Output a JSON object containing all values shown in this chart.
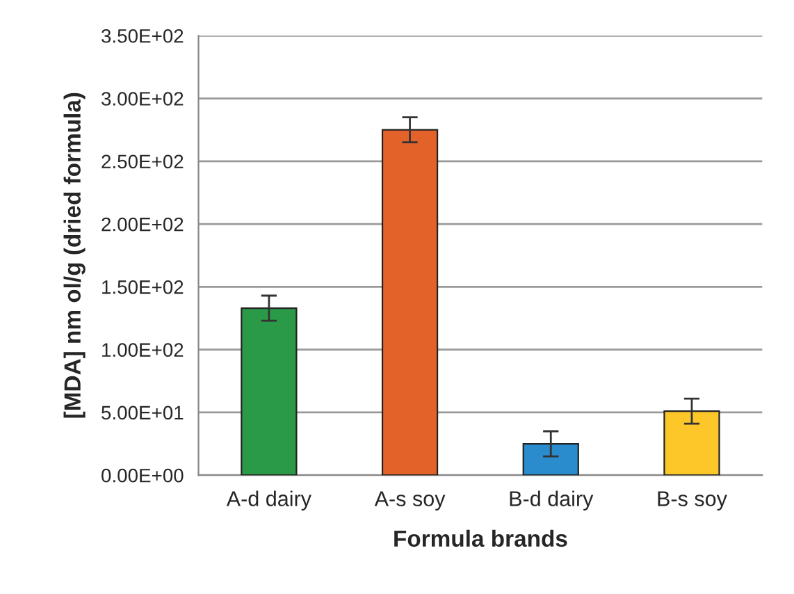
{
  "chart_data": {
    "type": "bar",
    "xlabel": "Formula brands",
    "ylabel": "[MDA] nm ol/g (dried formula)",
    "categories": [
      "A-d dairy",
      "A-s soy",
      "B-d dairy",
      "B-s soy"
    ],
    "values": [
      133,
      275,
      25,
      51
    ],
    "errors": [
      10,
      10,
      10,
      10
    ],
    "colors": [
      "#2a9a48",
      "#e2622a",
      "#2a8ccc",
      "#fdc72a"
    ],
    "ylim": [
      0,
      350
    ],
    "yticks": [
      {
        "value": 0,
        "label": "0.00E+00"
      },
      {
        "value": 50,
        "label": "5.00E+01"
      },
      {
        "value": 100,
        "label": "1.00E+02"
      },
      {
        "value": 150,
        "label": "1.50E+02"
      },
      {
        "value": 200,
        "label": "2.00E+02"
      },
      {
        "value": 250,
        "label": "2.50E+02"
      },
      {
        "value": 300,
        "label": "3.00E+02"
      },
      {
        "value": 350,
        "label": "3.50E+02"
      }
    ],
    "grid": "y"
  }
}
